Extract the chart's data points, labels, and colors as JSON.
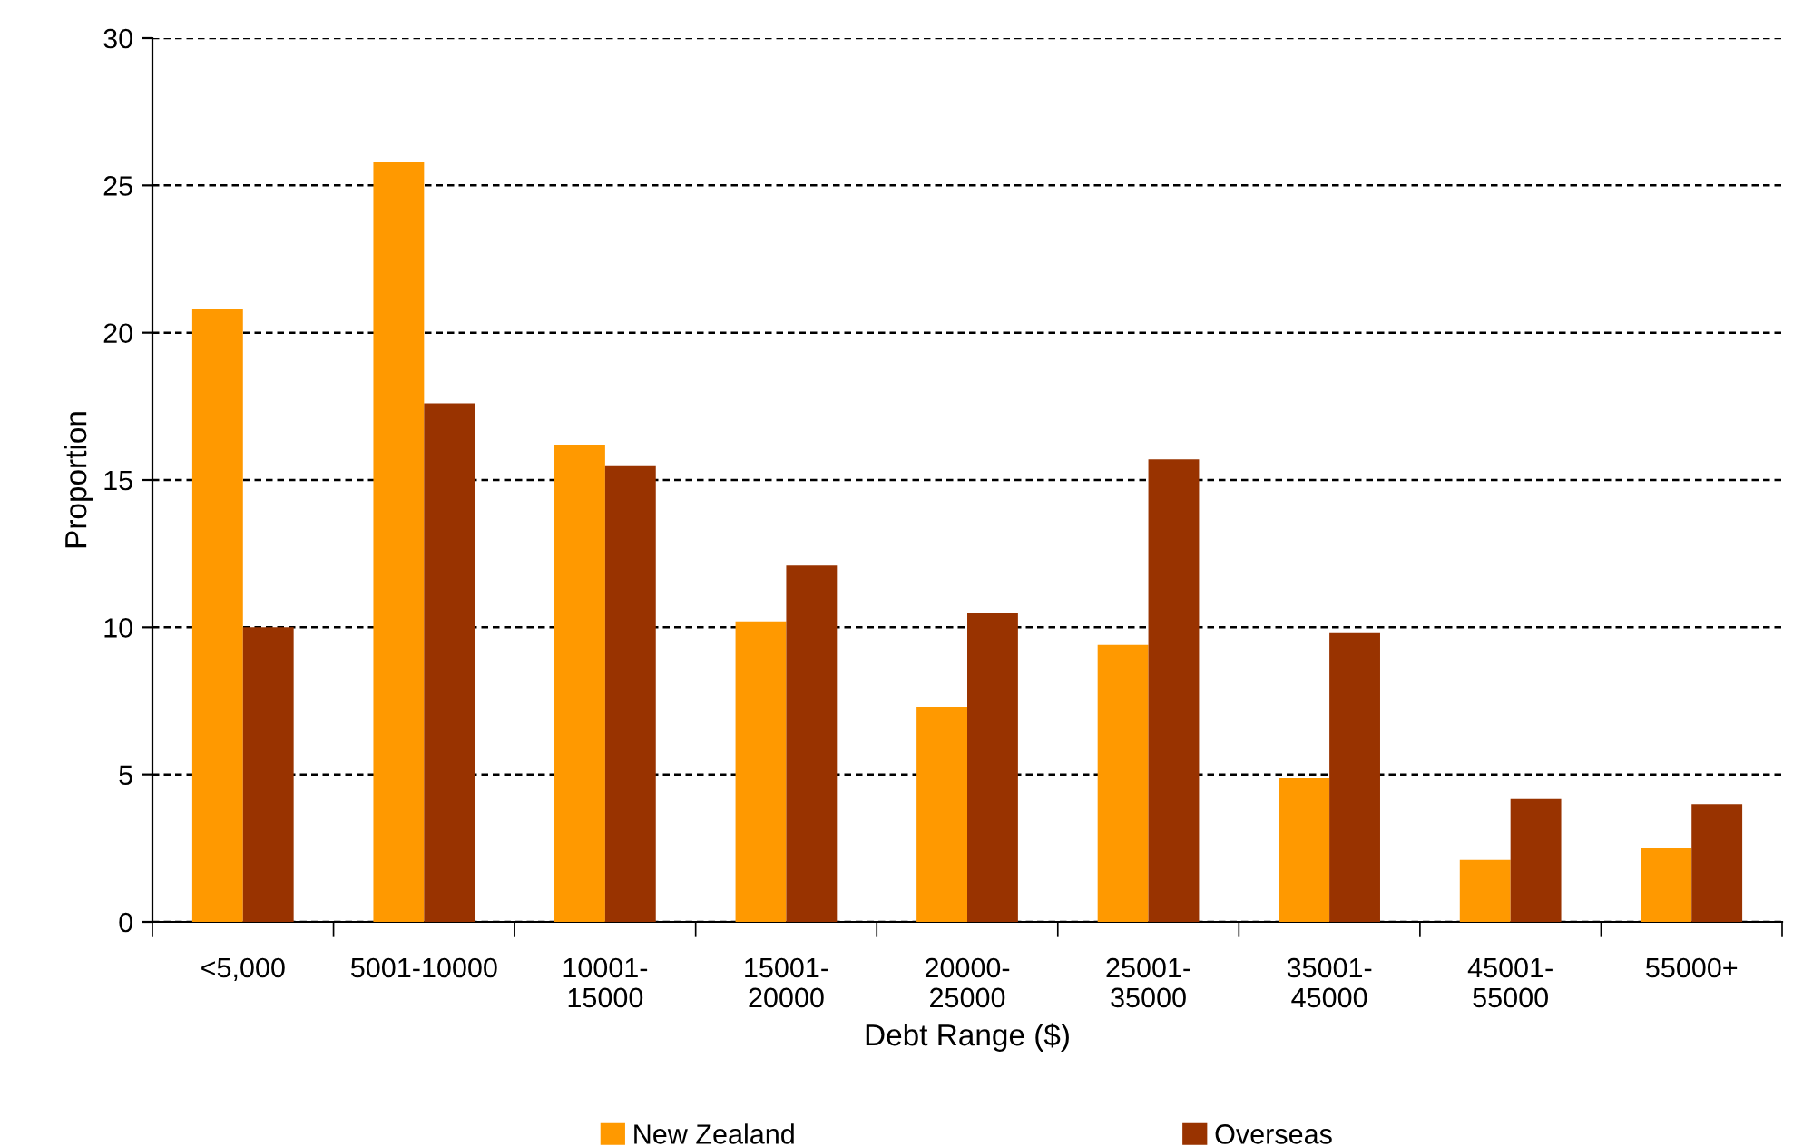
{
  "chart_data": {
    "type": "bar",
    "xlabel": "Debt Range ($)",
    "ylabel": "Proportion",
    "categories": [
      "<5,000",
      "5001-10000",
      "10001-\n15000",
      "15001-\n20000",
      "20000-\n25000",
      "25001-\n35000",
      "35001-\n45000",
      "45001-\n55000",
      "55000+"
    ],
    "series": [
      {
        "name": "New Zealand",
        "color": "#ff9900",
        "values": [
          20.8,
          25.8,
          16.2,
          10.2,
          7.3,
          9.4,
          4.9,
          2.1,
          2.5
        ]
      },
      {
        "name": "Overseas",
        "color": "#993300",
        "values": [
          10.0,
          17.6,
          15.5,
          12.1,
          10.5,
          15.7,
          9.8,
          4.2,
          4.0
        ]
      }
    ],
    "ylim": [
      0,
      30
    ],
    "yticks": [
      0,
      5,
      10,
      15,
      20,
      25,
      30
    ],
    "grid": "y",
    "legend": "bottom"
  }
}
